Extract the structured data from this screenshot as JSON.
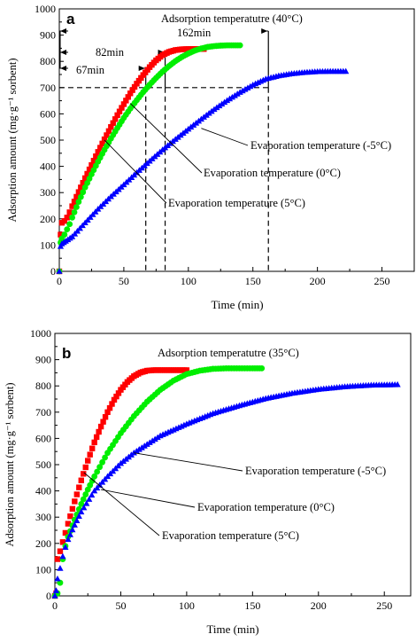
{
  "chart_data": [
    {
      "type": "scatter",
      "panel_label": "a",
      "title": "Adsorption temperatutre (40°C)",
      "xlabel": "Time (min)",
      "ylabel": "Adsorption amount (mg·g⁻¹ sorbent)",
      "xlim": [
        0,
        275
      ],
      "ylim": [
        0,
        1000
      ],
      "xticks": [
        0,
        50,
        100,
        150,
        200,
        250
      ],
      "yticks": [
        0,
        100,
        200,
        300,
        400,
        500,
        600,
        700,
        800,
        900,
        1000
      ],
      "grid": false,
      "series": [
        {
          "name": "Evaporation temperature (5°C)",
          "color": "#ff0000",
          "marker": "square",
          "x": [
            0,
            1,
            2,
            4,
            6,
            8,
            10,
            15,
            20,
            25,
            30,
            35,
            40,
            45,
            50,
            55,
            60,
            65,
            70,
            75,
            80,
            85,
            90,
            95,
            100,
            105,
            110,
            112
          ],
          "y": [
            0,
            140,
            185,
            192,
            205,
            225,
            248,
            302,
            355,
            405,
            455,
            503,
            550,
            595,
            637,
            678,
            715,
            748,
            778,
            804,
            824,
            836,
            843,
            846,
            847,
            847,
            847,
            847
          ]
        },
        {
          "name": "Evaporation temperature (0°C)",
          "color": "#00ee00",
          "marker": "circle",
          "x": [
            0,
            1,
            2,
            4,
            6,
            8,
            10,
            15,
            20,
            25,
            30,
            35,
            40,
            45,
            50,
            55,
            60,
            65,
            70,
            75,
            80,
            85,
            90,
            95,
            100,
            105,
            110,
            115,
            120,
            125,
            130,
            135,
            140
          ],
          "y": [
            0,
            110,
            125,
            140,
            160,
            180,
            205,
            265,
            320,
            370,
            418,
            463,
            506,
            546,
            585,
            620,
            652,
            683,
            711,
            737,
            761,
            782,
            801,
            817,
            830,
            841,
            849,
            855,
            858,
            860,
            861,
            861,
            861
          ]
        },
        {
          "name": "Evaporation temperature (-5°C)",
          "color": "#0000ff",
          "marker": "triangle",
          "x": [
            0,
            1,
            2,
            5,
            10,
            20,
            30,
            40,
            50,
            60,
            70,
            80,
            90,
            100,
            110,
            120,
            130,
            140,
            150,
            160,
            170,
            180,
            190,
            200,
            210,
            222
          ],
          "y": [
            0,
            95,
            105,
            115,
            132,
            185,
            237,
            285,
            330,
            376,
            420,
            463,
            503,
            542,
            580,
            617,
            651,
            682,
            710,
            733,
            745,
            753,
            758,
            761,
            762,
            762
          ]
        }
      ],
      "reference_lines": {
        "y_value": 700,
        "x_values": [
          67,
          82,
          162
        ],
        "labels": [
          "67min",
          "82min",
          "162min"
        ]
      },
      "annotations": [
        "Evaporation temperature (-5°C)",
        "Evaporation temperature (0°C)",
        "Evaporation temperature (5°C)"
      ]
    },
    {
      "type": "scatter",
      "panel_label": "b",
      "title": "Adsorption temperatutre (35°C)",
      "xlabel": "Time (min)",
      "ylabel": "Adsorption amount (mg·g⁻¹ sorbent)",
      "xlim": [
        0,
        270
      ],
      "ylim": [
        0,
        1000
      ],
      "xticks": [
        0,
        50,
        100,
        150,
        200,
        250
      ],
      "yticks": [
        0,
        100,
        200,
        300,
        400,
        500,
        600,
        700,
        800,
        900,
        1000
      ],
      "grid": false,
      "series": [
        {
          "name": "Evaporation temperature (5°C)",
          "color": "#ff0000",
          "marker": "square",
          "x": [
            0,
            1,
            2,
            4,
            6,
            8,
            10,
            15,
            20,
            25,
            30,
            35,
            40,
            45,
            50,
            55,
            60,
            65,
            70,
            75,
            80,
            85,
            90,
            95,
            100
          ],
          "y": [
            0,
            10,
            140,
            170,
            205,
            240,
            275,
            360,
            440,
            515,
            585,
            645,
            700,
            747,
            785,
            815,
            837,
            851,
            858,
            860,
            860,
            860,
            860,
            860,
            860
          ]
        },
        {
          "name": "Evaporation temperature (0°C)",
          "color": "#00ee00",
          "marker": "circle",
          "x": [
            0,
            2,
            4,
            6,
            8,
            10,
            15,
            20,
            25,
            30,
            40,
            50,
            60,
            70,
            80,
            90,
            100,
            110,
            120,
            130,
            140,
            150,
            157
          ],
          "y": [
            0,
            10,
            50,
            140,
            190,
            225,
            290,
            350,
            405,
            455,
            545,
            620,
            685,
            740,
            785,
            820,
            845,
            858,
            865,
            867,
            867,
            867,
            867
          ]
        },
        {
          "name": "Evaporation temperature (-5°C)",
          "color": "#0000ff",
          "marker": "triangle",
          "x": [
            0,
            1,
            2,
            4,
            6,
            8,
            10,
            15,
            20,
            30,
            40,
            50,
            60,
            80,
            100,
            120,
            140,
            160,
            180,
            200,
            220,
            240,
            260
          ],
          "y": [
            0,
            20,
            65,
            105,
            150,
            185,
            215,
            270,
            320,
            400,
            455,
            505,
            545,
            610,
            655,
            695,
            725,
            752,
            772,
            787,
            797,
            803,
            805
          ]
        }
      ],
      "annotations": [
        "Evaporation temperature (-5°C)",
        "Evaporation temperature (0°C)",
        "Evaporation temperature (5°C)"
      ]
    }
  ]
}
